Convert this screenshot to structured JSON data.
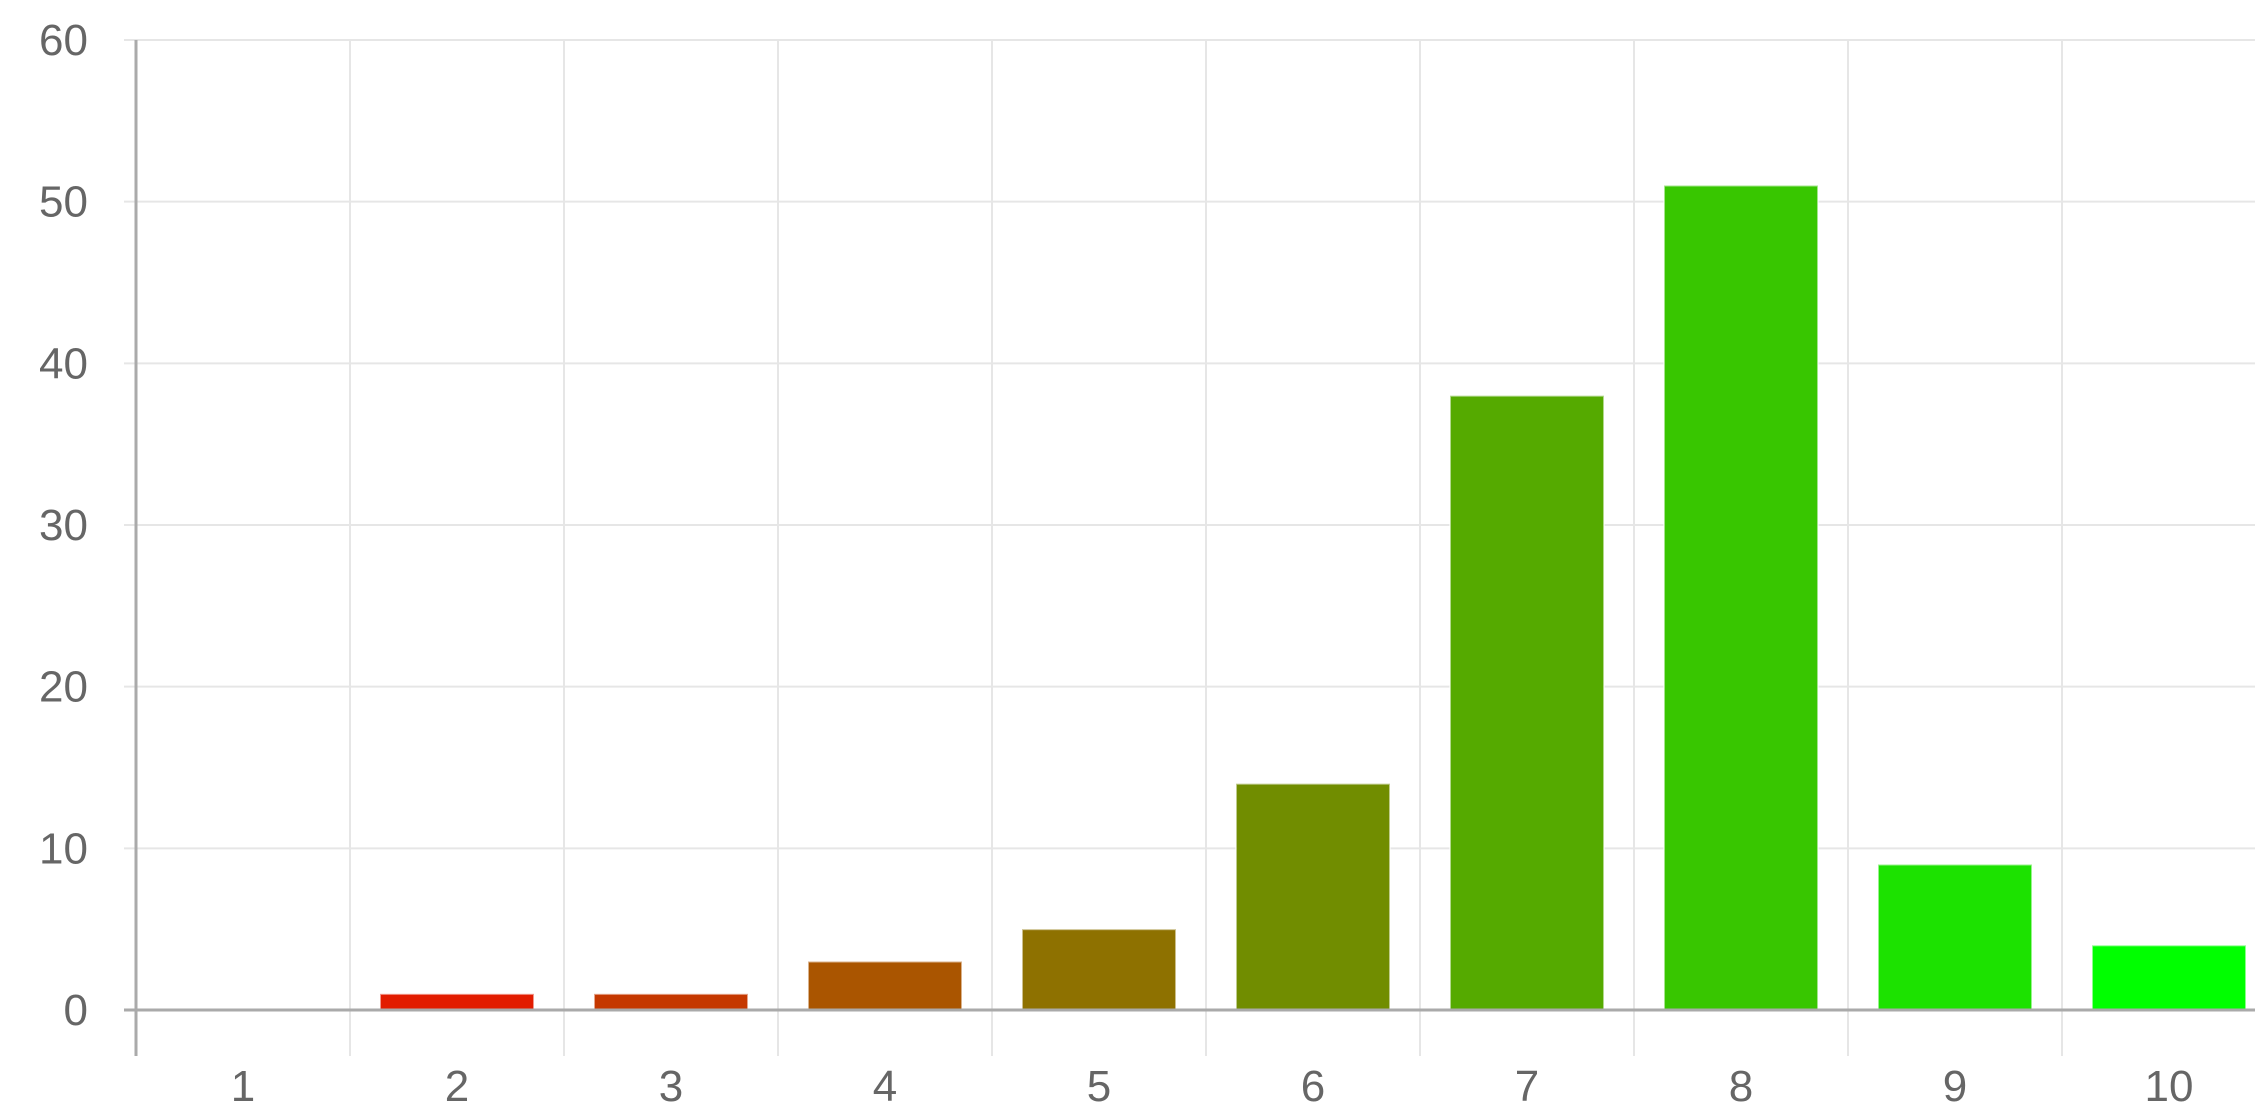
{
  "chart_data": {
    "type": "bar",
    "categories": [
      "1",
      "2",
      "3",
      "4",
      "5",
      "6",
      "7",
      "8",
      "9",
      "10"
    ],
    "values": [
      0,
      1,
      1,
      3,
      5,
      14,
      38,
      51,
      9,
      4
    ],
    "colors": [
      "#ff0000",
      "#e21c00",
      "#c53800",
      "#aa5500",
      "#8e7100",
      "#718d00",
      "#55aa00",
      "#38c600",
      "#1ce200",
      "#00ff00"
    ],
    "ylim": [
      0,
      60
    ],
    "yticks": [
      0,
      10,
      20,
      30,
      40,
      50,
      60
    ],
    "ytick_labels": [
      "0",
      "10",
      "20",
      "30",
      "40",
      "50",
      "60"
    ],
    "grid": true,
    "legend": "none"
  }
}
